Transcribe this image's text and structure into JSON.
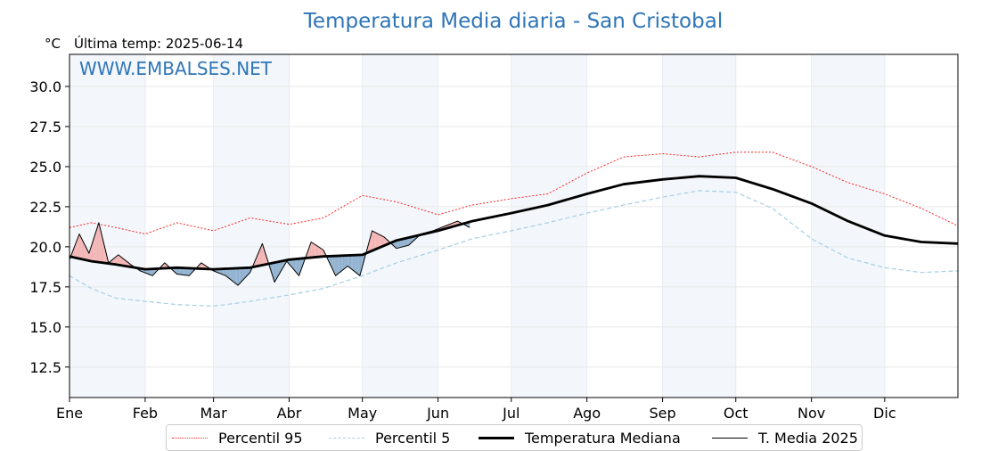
{
  "chart_data": {
    "type": "line",
    "title": "Temperatura Media diaria - San Cristobal",
    "unit_label": "°C",
    "last_temp_label": "Última temp: 2025-06-14",
    "watermark": "WWW.EMBALSES.NET",
    "xlim": [
      1,
      365
    ],
    "ylim": [
      10.6,
      32.0
    ],
    "yticks": [
      12.5,
      15.0,
      17.5,
      20.0,
      22.5,
      25.0,
      27.5,
      30.0
    ],
    "grid": true,
    "legend_position": "bottom",
    "months": [
      {
        "label": "Ene",
        "day": 1
      },
      {
        "label": "Feb",
        "day": 32
      },
      {
        "label": "Mar",
        "day": 60
      },
      {
        "label": "Abr",
        "day": 91
      },
      {
        "label": "May",
        "day": 121
      },
      {
        "label": "Jun",
        "day": 152
      },
      {
        "label": "Jul",
        "day": 182
      },
      {
        "label": "Ago",
        "day": 213
      },
      {
        "label": "Sep",
        "day": 244
      },
      {
        "label": "Oct",
        "day": 274
      },
      {
        "label": "Nov",
        "day": 305
      },
      {
        "label": "Dic",
        "day": 335
      }
    ],
    "series": [
      {
        "name": "Percentil 95",
        "color": "#ff2020",
        "style": "dotted",
        "x": [
          1,
          10,
          20,
          32,
          45,
          60,
          75,
          91,
          105,
          121,
          135,
          152,
          166,
          182,
          197,
          213,
          228,
          244,
          259,
          274,
          289,
          305,
          320,
          335,
          350,
          365
        ],
        "y": [
          21.2,
          21.5,
          21.2,
          20.8,
          21.5,
          21.0,
          21.8,
          21.4,
          21.8,
          23.2,
          22.8,
          22.0,
          22.6,
          23.0,
          23.3,
          24.6,
          25.6,
          25.8,
          25.6,
          25.9,
          25.9,
          25.0,
          24.0,
          23.3,
          22.4,
          21.3
        ]
      },
      {
        "name": "Percentil 5",
        "color": "#a6cee3",
        "style": "dashed",
        "x": [
          1,
          10,
          20,
          32,
          45,
          60,
          75,
          91,
          105,
          121,
          135,
          152,
          166,
          182,
          197,
          213,
          228,
          244,
          259,
          274,
          289,
          305,
          320,
          335,
          350,
          365
        ],
        "y": [
          18.2,
          17.4,
          16.8,
          16.6,
          16.4,
          16.3,
          16.6,
          17.0,
          17.4,
          18.2,
          19.0,
          19.8,
          20.5,
          21.0,
          21.5,
          22.1,
          22.6,
          23.1,
          23.5,
          23.4,
          22.4,
          20.5,
          19.3,
          18.7,
          18.4,
          18.5
        ]
      },
      {
        "name": "Temperatura Mediana",
        "color": "#000000",
        "style": "bold",
        "x": [
          1,
          10,
          20,
          32,
          45,
          60,
          75,
          91,
          105,
          121,
          135,
          152,
          166,
          182,
          197,
          213,
          228,
          244,
          259,
          274,
          289,
          305,
          320,
          335,
          350,
          365
        ],
        "y": [
          19.4,
          19.1,
          18.9,
          18.6,
          18.7,
          18.6,
          18.7,
          19.2,
          19.4,
          19.5,
          20.4,
          21.0,
          21.6,
          22.1,
          22.6,
          23.3,
          23.9,
          24.2,
          24.4,
          24.3,
          23.6,
          22.7,
          21.6,
          20.7,
          20.3,
          20.2
        ]
      },
      {
        "name": "T. Media 2025",
        "color": "#000000",
        "style": "thin",
        "x": [
          1,
          5,
          9,
          13,
          17,
          21,
          26,
          30,
          35,
          40,
          45,
          50,
          55,
          60,
          65,
          70,
          75,
          80,
          85,
          90,
          95,
          100,
          105,
          110,
          115,
          120,
          125,
          130,
          135,
          140,
          145,
          150,
          155,
          160,
          165
        ],
        "y": [
          19.2,
          20.8,
          19.6,
          21.5,
          19.0,
          19.5,
          18.9,
          18.5,
          18.2,
          19.0,
          18.3,
          18.2,
          19.0,
          18.5,
          18.2,
          17.6,
          18.4,
          20.2,
          17.8,
          19.1,
          18.2,
          20.3,
          19.8,
          18.2,
          18.8,
          18.2,
          21.0,
          20.6,
          19.9,
          20.1,
          20.8,
          21.0,
          21.3,
          21.6,
          21.2
        ]
      }
    ]
  }
}
